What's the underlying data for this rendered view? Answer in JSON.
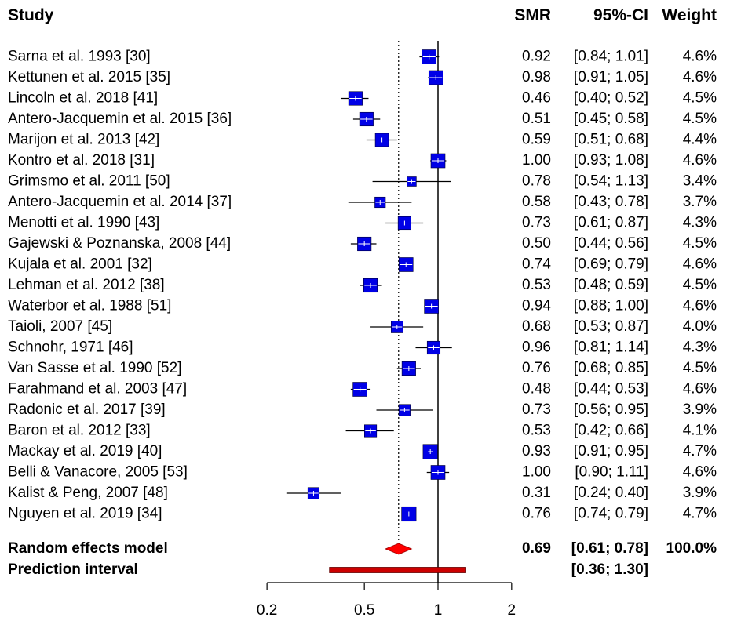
{
  "chart_data": {
    "type": "forest",
    "headers": {
      "study": "Study",
      "effect": "SMR",
      "ci": "95%-CI",
      "weight": "Weight"
    },
    "x_scale": "log",
    "x_ticks": [
      0.2,
      0.5,
      1,
      2
    ],
    "x_tick_labels": [
      "0.2",
      "0.5",
      "1",
      "2"
    ],
    "reference_line": 1,
    "studies": [
      {
        "label": "Sarna et al. 1993 [30]",
        "smr": 0.92,
        "lower": 0.84,
        "upper": 1.01,
        "smr_text": "0.92",
        "ci_text": "[0.84; 1.01]",
        "weight_text": "4.6%",
        "weight": 4.6
      },
      {
        "label": "Kettunen et al. 2015 [35]",
        "smr": 0.98,
        "lower": 0.91,
        "upper": 1.05,
        "smr_text": "0.98",
        "ci_text": "[0.91; 1.05]",
        "weight_text": "4.6%",
        "weight": 4.6
      },
      {
        "label": "Lincoln et al. 2018 [41]",
        "smr": 0.46,
        "lower": 0.4,
        "upper": 0.52,
        "smr_text": "0.46",
        "ci_text": "[0.40; 0.52]",
        "weight_text": "4.5%",
        "weight": 4.5
      },
      {
        "label": "Antero-Jacquemin et al. 2015 [36]",
        "smr": 0.51,
        "lower": 0.45,
        "upper": 0.58,
        "smr_text": "0.51",
        "ci_text": "[0.45; 0.58]",
        "weight_text": "4.5%",
        "weight": 4.5
      },
      {
        "label": "Marijon et al. 2013 [42]",
        "smr": 0.59,
        "lower": 0.51,
        "upper": 0.68,
        "smr_text": "0.59",
        "ci_text": "[0.51; 0.68]",
        "weight_text": "4.4%",
        "weight": 4.4
      },
      {
        "label": "Kontro et al. 2018 [31]",
        "smr": 1.0,
        "lower": 0.93,
        "upper": 1.08,
        "smr_text": "1.00",
        "ci_text": "[0.93; 1.08]",
        "weight_text": "4.6%",
        "weight": 4.6
      },
      {
        "label": "Grimsmo et al. 2011 [50]",
        "smr": 0.78,
        "lower": 0.54,
        "upper": 1.13,
        "smr_text": "0.78",
        "ci_text": "[0.54; 1.13]",
        "weight_text": "3.4%",
        "weight": 3.4
      },
      {
        "label": "Antero-Jacquemin et al. 2014 [37]",
        "smr": 0.58,
        "lower": 0.43,
        "upper": 0.78,
        "smr_text": "0.58",
        "ci_text": "[0.43; 0.78]",
        "weight_text": "3.7%",
        "weight": 3.7
      },
      {
        "label": "Menotti et al. 1990 [43]",
        "smr": 0.73,
        "lower": 0.61,
        "upper": 0.87,
        "smr_text": "0.73",
        "ci_text": "[0.61; 0.87]",
        "weight_text": "4.3%",
        "weight": 4.3
      },
      {
        "label": "Gajewski & Poznanska, 2008 [44]",
        "smr": 0.5,
        "lower": 0.44,
        "upper": 0.56,
        "smr_text": "0.50",
        "ci_text": "[0.44; 0.56]",
        "weight_text": "4.5%",
        "weight": 4.5
      },
      {
        "label": "Kujala et al. 2001 [32]",
        "smr": 0.74,
        "lower": 0.69,
        "upper": 0.79,
        "smr_text": "0.74",
        "ci_text": "[0.69; 0.79]",
        "weight_text": "4.6%",
        "weight": 4.6
      },
      {
        "label": "Lehman et al. 2012 [38]",
        "smr": 0.53,
        "lower": 0.48,
        "upper": 0.59,
        "smr_text": "0.53",
        "ci_text": "[0.48; 0.59]",
        "weight_text": "4.5%",
        "weight": 4.5
      },
      {
        "label": "Waterbor et al. 1988 [51]",
        "smr": 0.94,
        "lower": 0.88,
        "upper": 1.0,
        "smr_text": "0.94",
        "ci_text": "[0.88; 1.00]",
        "weight_text": "4.6%",
        "weight": 4.6
      },
      {
        "label": "Taioli, 2007 [45]",
        "smr": 0.68,
        "lower": 0.53,
        "upper": 0.87,
        "smr_text": "0.68",
        "ci_text": "[0.53; 0.87]",
        "weight_text": "4.0%",
        "weight": 4.0
      },
      {
        "label": "Schnohr, 1971 [46]",
        "smr": 0.96,
        "lower": 0.81,
        "upper": 1.14,
        "smr_text": "0.96",
        "ci_text": "[0.81; 1.14]",
        "weight_text": "4.3%",
        "weight": 4.3
      },
      {
        "label": "Van Sasse et al. 1990 [52]",
        "smr": 0.76,
        "lower": 0.68,
        "upper": 0.85,
        "smr_text": "0.76",
        "ci_text": "[0.68; 0.85]",
        "weight_text": "4.5%",
        "weight": 4.5
      },
      {
        "label": "Farahmand et al. 2003 [47]",
        "smr": 0.48,
        "lower": 0.44,
        "upper": 0.53,
        "smr_text": "0.48",
        "ci_text": "[0.44; 0.53]",
        "weight_text": "4.6%",
        "weight": 4.6
      },
      {
        "label": "Radonic et al. 2017 [39]",
        "smr": 0.73,
        "lower": 0.56,
        "upper": 0.95,
        "smr_text": "0.73",
        "ci_text": "[0.56; 0.95]",
        "weight_text": "3.9%",
        "weight": 3.9
      },
      {
        "label": "Baron et al. 2012 [33]",
        "smr": 0.53,
        "lower": 0.42,
        "upper": 0.66,
        "smr_text": "0.53",
        "ci_text": "[0.42; 0.66]",
        "weight_text": "4.1%",
        "weight": 4.1
      },
      {
        "label": "Mackay et al. 2019 [40]",
        "smr": 0.93,
        "lower": 0.91,
        "upper": 0.95,
        "smr_text": "0.93",
        "ci_text": "[0.91; 0.95]",
        "weight_text": "4.7%",
        "weight": 4.7
      },
      {
        "label": "Belli & Vanacore, 2005 [53]",
        "smr": 1.0,
        "lower": 0.9,
        "upper": 1.11,
        "smr_text": "1.00",
        "ci_text": "[0.90; 1.11]",
        "weight_text": "4.6%",
        "weight": 4.6
      },
      {
        "label": "Kalist & Peng, 2007 [48]",
        "smr": 0.31,
        "lower": 0.24,
        "upper": 0.4,
        "smr_text": "0.31",
        "ci_text": "[0.24; 0.40]",
        "weight_text": "3.9%",
        "weight": 3.9
      },
      {
        "label": "Nguyen et al. 2019 [34]",
        "smr": 0.76,
        "lower": 0.74,
        "upper": 0.79,
        "smr_text": "0.76",
        "ci_text": "[0.74; 0.79]",
        "weight_text": "4.7%",
        "weight": 4.7
      }
    ],
    "random_effects": {
      "label": "Random effects model",
      "smr": 0.69,
      "lower": 0.61,
      "upper": 0.78,
      "smr_text": "0.69",
      "ci_text": "[0.61; 0.78]",
      "weight_text": "100.0%"
    },
    "prediction_interval": {
      "label": "Prediction interval",
      "lower": 0.36,
      "upper": 1.3,
      "ci_text": "[0.36; 1.30]"
    },
    "colors": {
      "square": "#0000e6",
      "diamond": "#ff0000",
      "prediction_bar": "#cc0000",
      "line": "#000000"
    }
  }
}
